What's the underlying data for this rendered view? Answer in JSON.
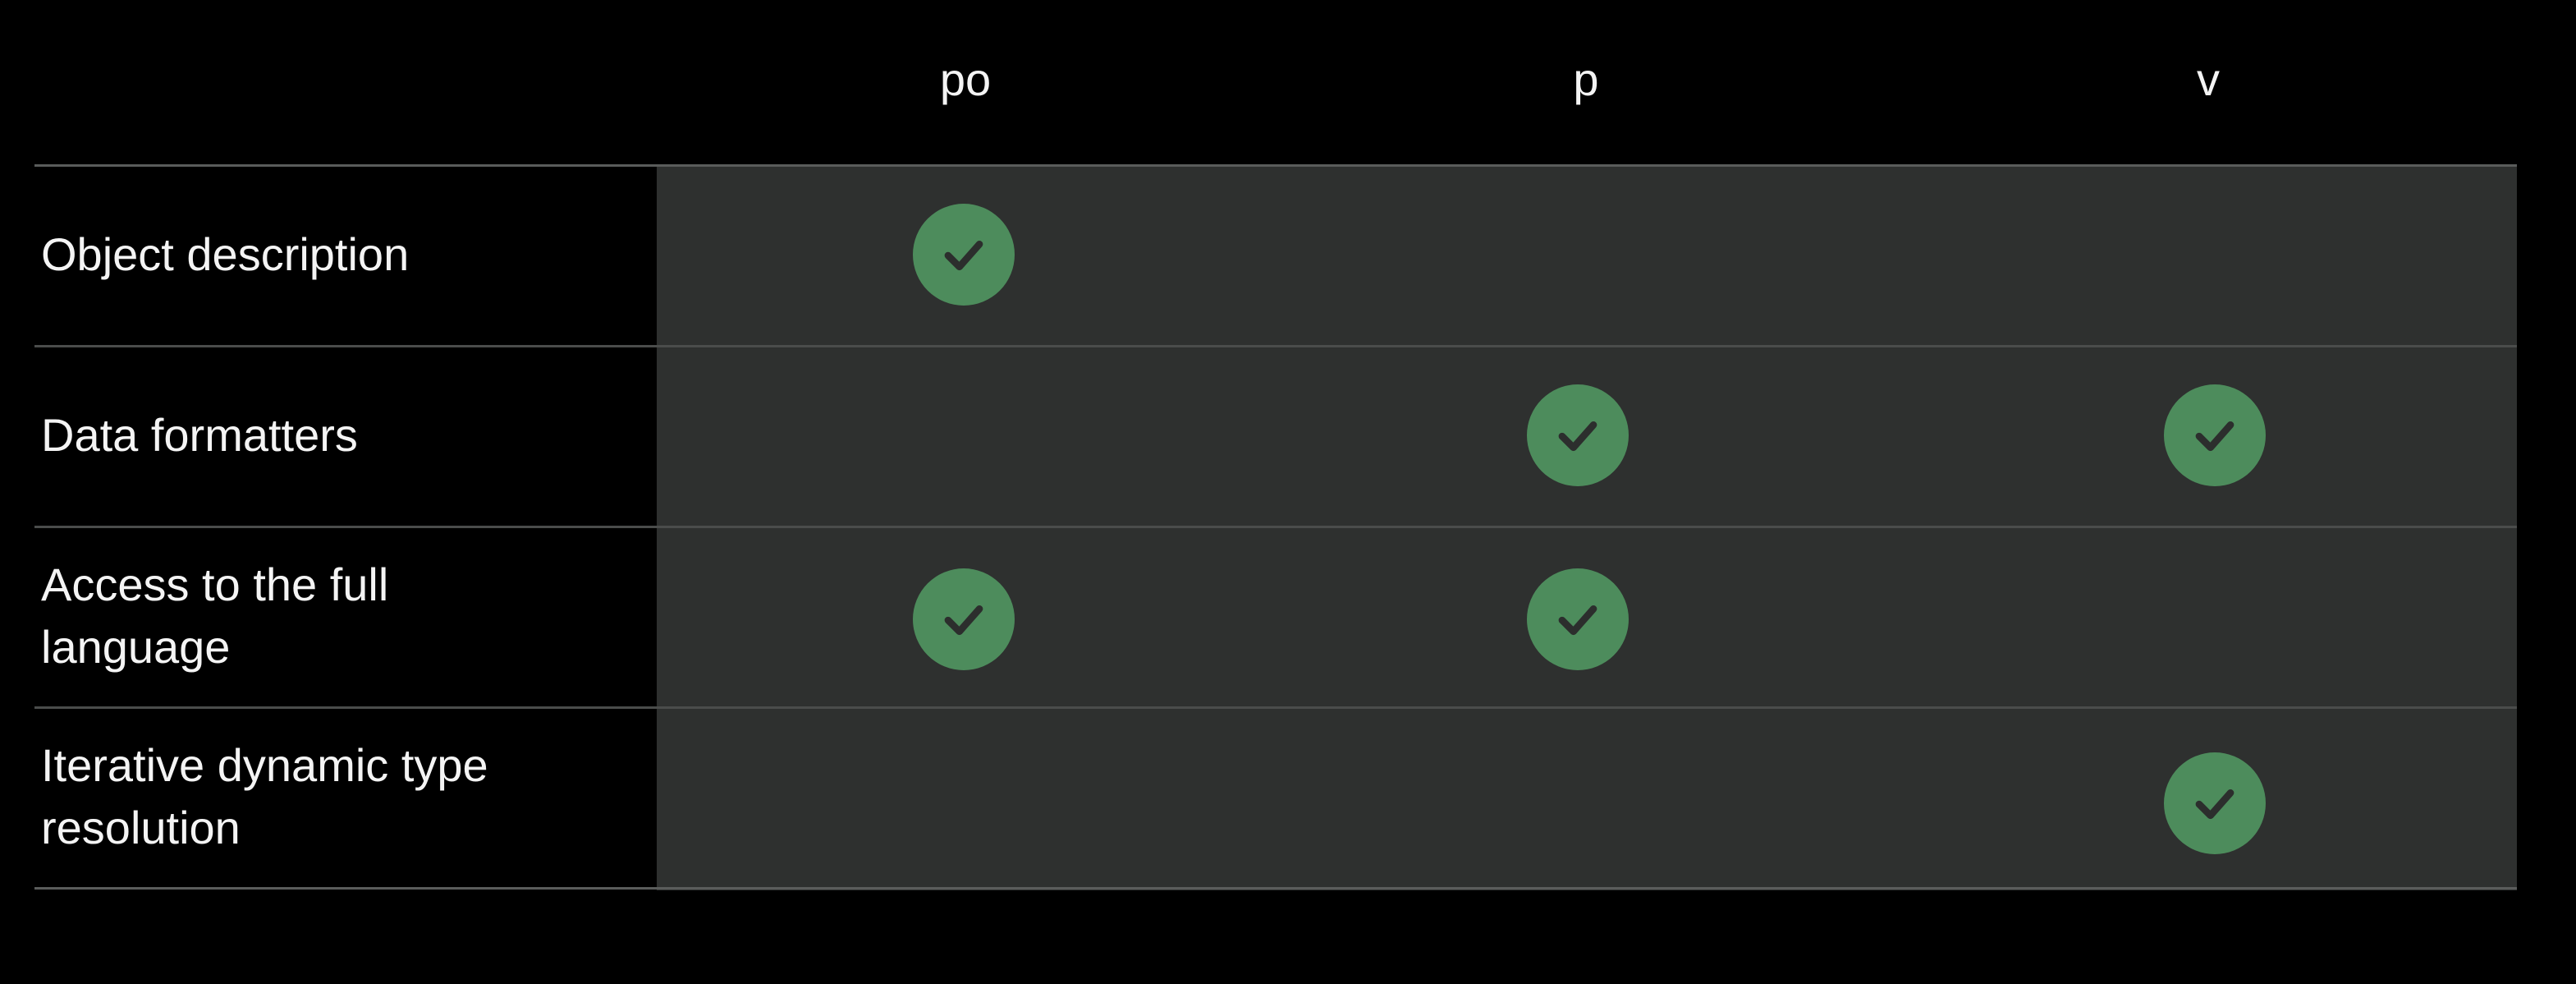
{
  "columns": [
    {
      "label": "po"
    },
    {
      "label": "p"
    },
    {
      "label": "v"
    }
  ],
  "rows": [
    {
      "label": "Object description",
      "checks": [
        true,
        false,
        false
      ]
    },
    {
      "label": "Data formatters",
      "checks": [
        false,
        true,
        true
      ]
    },
    {
      "label": "Access to the full language",
      "checks": [
        true,
        true,
        false
      ]
    },
    {
      "label": "Iterative dynamic type resolution",
      "checks": [
        false,
        false,
        true
      ]
    }
  ],
  "colors": {
    "background": "#000000",
    "cell_background": "#2e302f",
    "check_fill": "#4d8c5c",
    "check_mark": "#2c2e2d",
    "divider": "#5a5c5b"
  },
  "icons": {
    "check": "checkmark-circle-icon"
  }
}
